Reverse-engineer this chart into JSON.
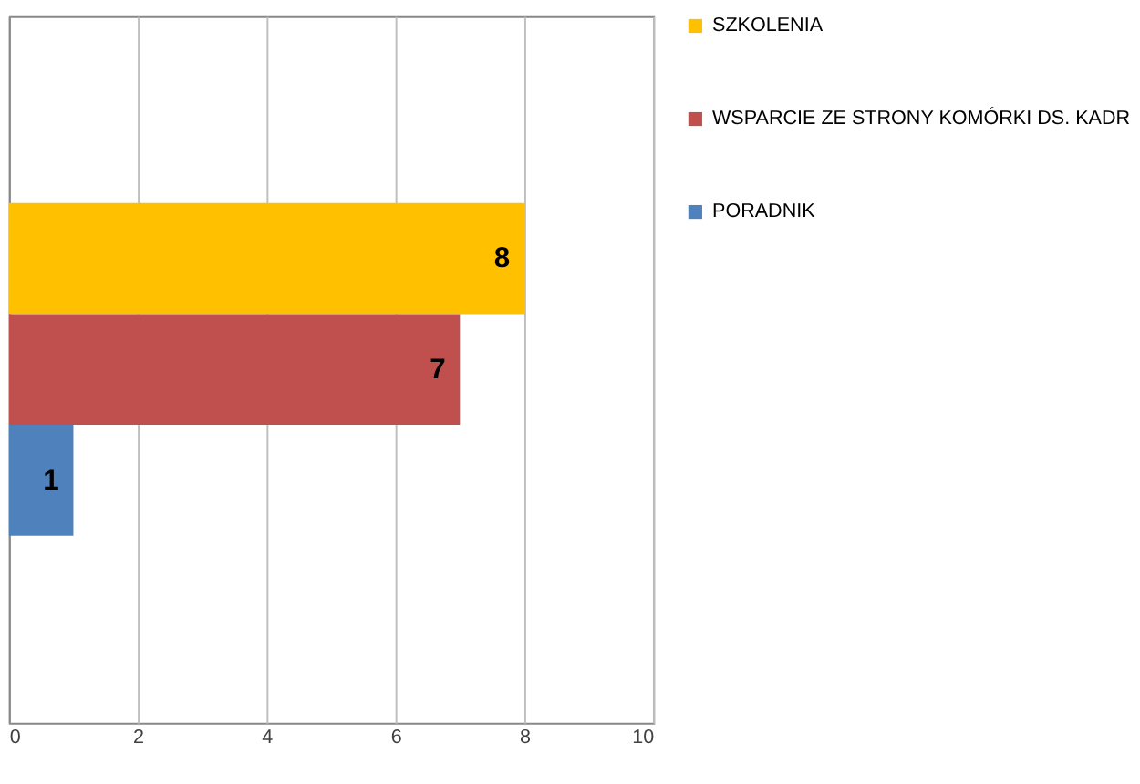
{
  "chart_data": {
    "type": "bar",
    "orientation": "horizontal",
    "categories": [
      null
    ],
    "series": [
      {
        "name": "SZKOLENIA",
        "color": "#ffc000",
        "values": [
          8
        ]
      },
      {
        "name": "WSPARCIE ZE STRONY KOMÓRKI DS. KADR",
        "color": "#c0504d",
        "values": [
          7
        ]
      },
      {
        "name": "PORADNIK",
        "color": "#4f81bd",
        "values": [
          1
        ]
      }
    ],
    "xlim": [
      0,
      10
    ],
    "xticks": [
      0,
      2,
      4,
      6,
      8,
      10
    ],
    "grid": "x",
    "legend": "right",
    "data_labels": true
  }
}
